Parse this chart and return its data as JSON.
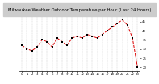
{
  "title": "Milwaukee Weather Outdoor Temperature per Hour (Last 24 Hours)",
  "hours": [
    0,
    1,
    2,
    3,
    4,
    5,
    6,
    7,
    8,
    9,
    10,
    11,
    12,
    13,
    14,
    15,
    16,
    17,
    18,
    19,
    20,
    21,
    22,
    23
  ],
  "temps": [
    32,
    30,
    29,
    31,
    35,
    34,
    31,
    36,
    34,
    32,
    36,
    37,
    36,
    38,
    37,
    36,
    38,
    40,
    42,
    44,
    46,
    43,
    36,
    20
  ],
  "line_color": "#dd0000",
  "marker_color": "#000000",
  "grid_color": "#999999",
  "bg_color": "#ffffff",
  "title_bg": "#c0c0c0",
  "ylim": [
    18,
    50
  ],
  "ytick_labels": [
    "20",
    "25",
    "30",
    "35",
    "40",
    "45"
  ],
  "ytick_vals": [
    20,
    25,
    30,
    35,
    40,
    45
  ],
  "title_fontsize": 3.8,
  "tick_fontsize": 2.8,
  "linewidth": 0.7,
  "markersize": 1.5
}
